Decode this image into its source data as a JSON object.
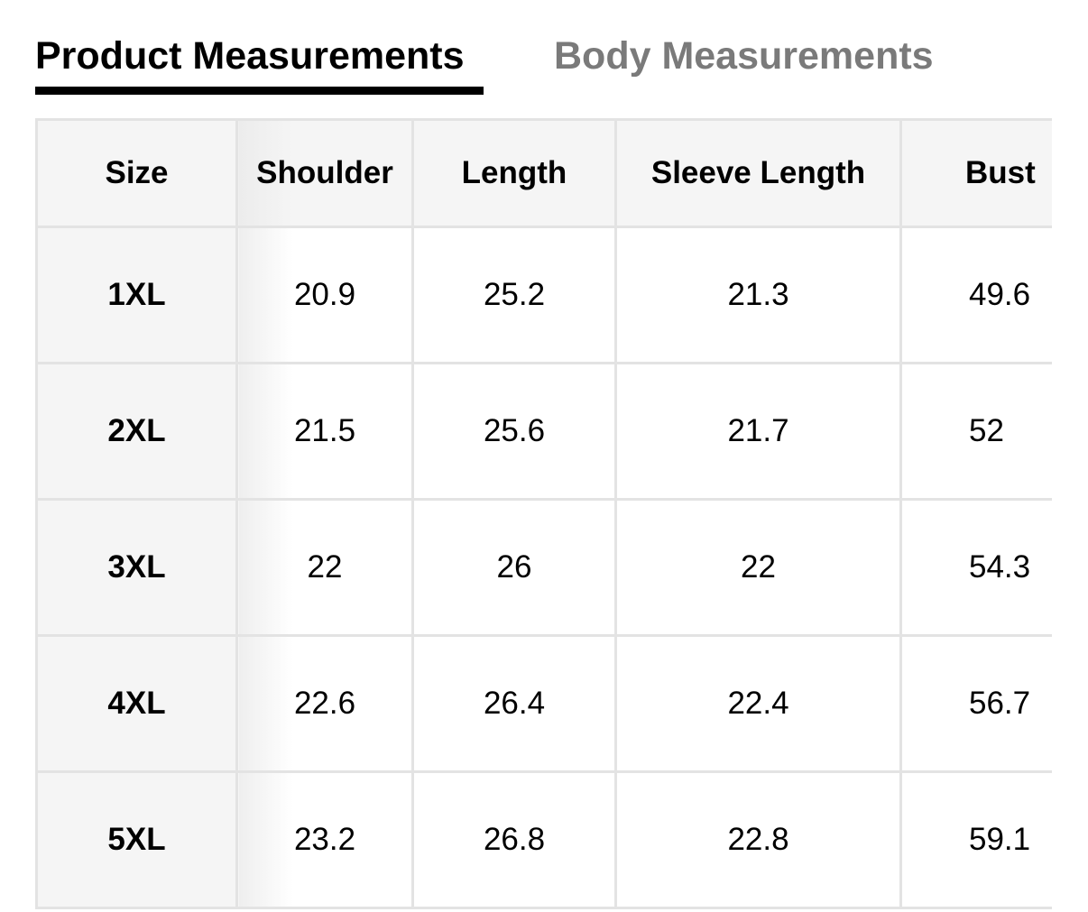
{
  "tabs": [
    {
      "label": "Product Measurements",
      "active": true
    },
    {
      "label": "Body Measurements",
      "active": false
    }
  ],
  "table": {
    "headers": [
      "Size",
      "Shoulder",
      "Length",
      "Sleeve Length",
      "Bust"
    ],
    "rows": [
      [
        "1XL",
        "20.9",
        "25.2",
        "21.3",
        "49.6"
      ],
      [
        "2XL",
        "21.5",
        "25.6",
        "21.7",
        "52"
      ],
      [
        "3XL",
        "22",
        "26",
        "22",
        "54.3"
      ],
      [
        "4XL",
        "22.6",
        "26.4",
        "22.4",
        "56.7"
      ],
      [
        "5XL",
        "23.2",
        "26.8",
        "22.8",
        "59.1"
      ]
    ]
  },
  "colors": {
    "active_tab": "#000000",
    "inactive_tab": "#7a7a7a",
    "header_bg": "#f5f5f5",
    "border": "#e3e3e3"
  }
}
